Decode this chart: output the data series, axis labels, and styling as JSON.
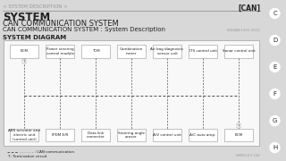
{
  "page_bg": "#d8d8d8",
  "content_bg": "#f0f0f0",
  "diagram_bg": "#f0f0f0",
  "title_line1": "< SYSTEM DESCRIPTION >",
  "title_right": "[CAN]",
  "title_line2": "SYSTEM",
  "title_line3": "CAN COMMUNICATION SYSTEM",
  "title_line4": "CAN COMMUNICATION SYSTEM : System Description",
  "title_small_right": "NISSAN L332 2013",
  "section_title": "SYSTEM DIAGRAM",
  "top_boxes": [
    "ECM",
    "Power steering\ncontrol module",
    "TCM",
    "Combination\nmeter",
    "Air bag diagnostic\nsensor unit",
    "ITS control unit",
    "Sonar control unit"
  ],
  "bottom_boxes": [
    "ABS actuator and\nelectric unit\n(control unit)",
    "IPDM E/R",
    "Data link\nconnector",
    "Steering angle\nsensor",
    "A/V control unit",
    "A/C auto amp.",
    "BCM"
  ],
  "legend_can": "- - - - - - : CAN communication",
  "legend_term": "T : Termination circuit",
  "page_num": "NIWSS-K E 104",
  "right_tabs": [
    "C",
    "D",
    "E",
    "F",
    "G",
    "H"
  ],
  "outer_box_edge": "#aaaaaa",
  "inner_box_edge": "#aaaaaa",
  "box_fill": "#ffffff",
  "line_color": "#555555",
  "text_color": "#222222",
  "small_text_color": "#999999",
  "header_line_color": "#888888",
  "top_T_indices": [
    0
  ],
  "bottom_T_indices": [
    6
  ],
  "right_tab_bg": "#c8c8c8"
}
